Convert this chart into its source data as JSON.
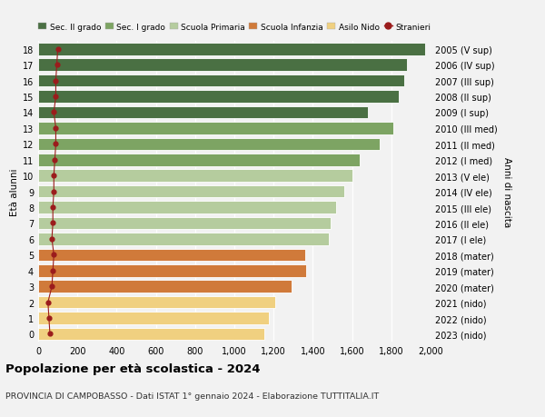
{
  "ages": [
    0,
    1,
    2,
    3,
    4,
    5,
    6,
    7,
    8,
    9,
    10,
    11,
    12,
    13,
    14,
    15,
    16,
    17,
    18
  ],
  "years": [
    "2023 (nido)",
    "2022 (nido)",
    "2021 (nido)",
    "2020 (mater)",
    "2019 (mater)",
    "2018 (mater)",
    "2017 (I ele)",
    "2016 (II ele)",
    "2015 (III ele)",
    "2014 (IV ele)",
    "2013 (V ele)",
    "2012 (I med)",
    "2011 (II med)",
    "2010 (III med)",
    "2009 (I sup)",
    "2008 (II sup)",
    "2007 (III sup)",
    "2006 (IV sup)",
    "2005 (V sup)"
  ],
  "values": [
    1155,
    1175,
    1210,
    1290,
    1365,
    1360,
    1480,
    1490,
    1520,
    1560,
    1600,
    1640,
    1740,
    1810,
    1680,
    1840,
    1865,
    1880,
    1970
  ],
  "stranieri": [
    60,
    55,
    50,
    70,
    75,
    80,
    70,
    75,
    75,
    80,
    80,
    85,
    90,
    90,
    80,
    90,
    90,
    95,
    100
  ],
  "bar_colors": [
    "#f0d080",
    "#f0d080",
    "#f0d080",
    "#d07a3a",
    "#d07a3a",
    "#d07a3a",
    "#b5cc9e",
    "#b5cc9e",
    "#b5cc9e",
    "#b5cc9e",
    "#b5cc9e",
    "#7da463",
    "#7da463",
    "#7da463",
    "#4a7043",
    "#4a7043",
    "#4a7043",
    "#4a7043",
    "#4a7043"
  ],
  "title": "Popolazione per età scolastica - 2024",
  "subtitle": "PROVINCIA DI CAMPOBASSO - Dati ISTAT 1° gennaio 2024 - Elaborazione TUTTITALIA.IT",
  "ylabel": "Età alunni",
  "y2label": "Anni di nascita",
  "xlim": [
    0,
    2000
  ],
  "xticks": [
    0,
    200,
    400,
    600,
    800,
    1000,
    1200,
    1400,
    1600,
    1800,
    2000
  ],
  "xtick_labels": [
    "0",
    "200",
    "400",
    "600",
    "800",
    "1,000",
    "1,200",
    "1,400",
    "1,600",
    "1,800",
    "2,000"
  ],
  "legend_labels": [
    "Sec. II grado",
    "Sec. I grado",
    "Scuola Primaria",
    "Scuola Infanzia",
    "Asilo Nido",
    "Stranieri"
  ],
  "legend_colors": [
    "#4a7043",
    "#7da463",
    "#b5cc9e",
    "#d07a3a",
    "#f0d080",
    "#9b1c1c"
  ],
  "stranieri_color": "#9b1c1c",
  "bg_color": "#f2f2f2",
  "bar_height": 0.78
}
